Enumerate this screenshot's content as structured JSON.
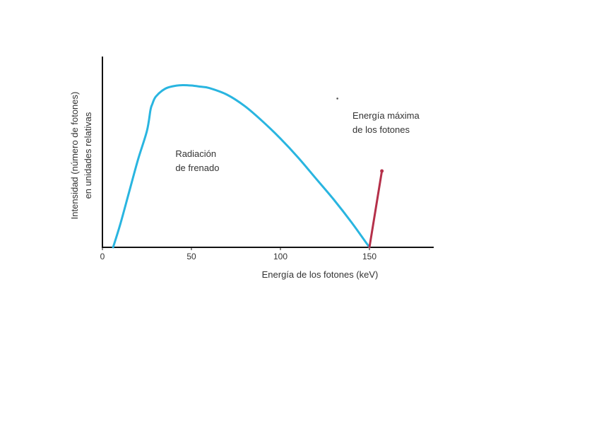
{
  "chart_data": {
    "type": "line",
    "title": "",
    "xlabel": "Energía de los fotones (keV)",
    "ylabel": [
      "Intensidad (número de fotones)",
      "en unidades relativas"
    ],
    "xlim": [
      0,
      185
    ],
    "ylim": [
      0,
      10
    ],
    "xticks": [
      0,
      50,
      100,
      150
    ],
    "xtick_labels": [
      "0",
      "50",
      "100",
      "150"
    ],
    "grid": false,
    "series": [
      {
        "color": "#29b5e0",
        "x": [
          6,
          10,
          15,
          20,
          25,
          27,
          28,
          30,
          35,
          40,
          45,
          50,
          55,
          60,
          70,
          80,
          90,
          100,
          110,
          120,
          130,
          140,
          150
        ],
        "y": [
          0,
          1.2,
          2.9,
          4.6,
          6.1,
          7.2,
          7.5,
          7.9,
          8.3,
          8.45,
          8.5,
          8.48,
          8.42,
          8.35,
          8.0,
          7.4,
          6.6,
          5.7,
          4.7,
          3.6,
          2.5,
          1.3,
          0
        ]
      }
    ],
    "annotations": [
      {
        "lines": [
          "Radiación",
          "de frenado"
        ],
        "x": 41,
        "y": 4.0
      },
      {
        "lines": [
          "Energía máxima",
          "de los fotones"
        ],
        "x": 140.5,
        "y": 6.0
      }
    ],
    "pointer": {
      "color": "#b5304a",
      "from": [
        150,
        0
      ],
      "to": [
        157,
        4.0
      ]
    },
    "stray_dot": {
      "x": 132,
      "y": 7.8
    }
  }
}
